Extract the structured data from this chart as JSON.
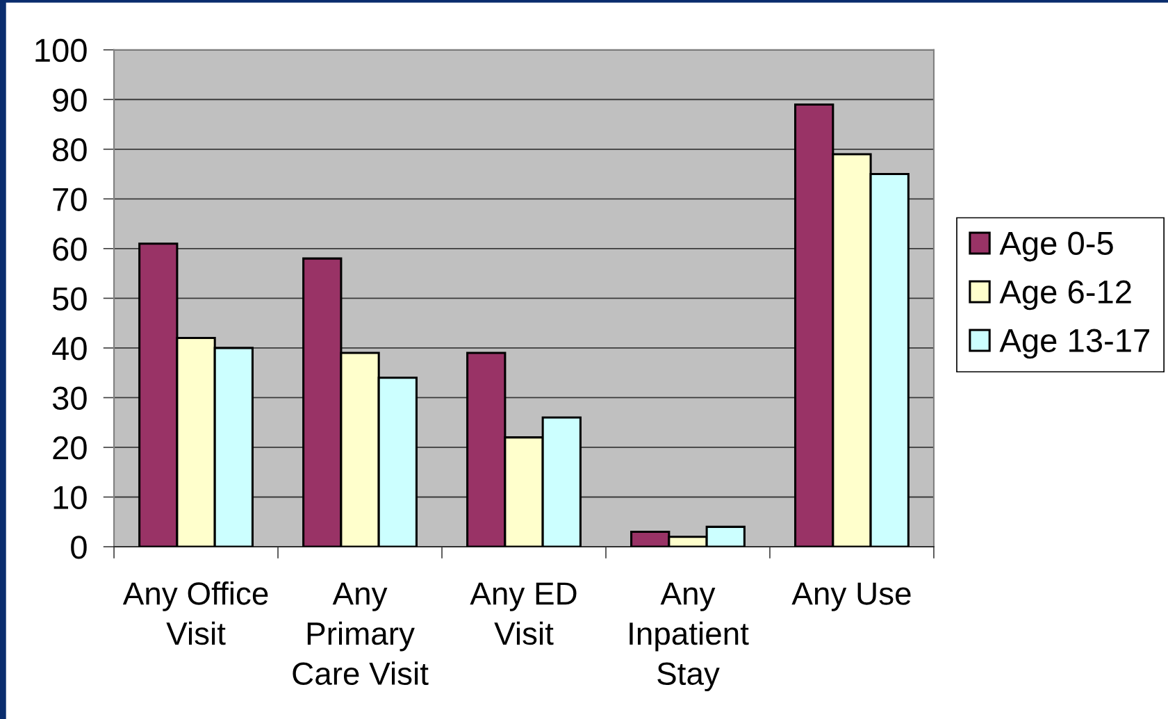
{
  "chart_data": {
    "type": "bar",
    "categories": [
      "Any Office\nVisit",
      "Any\nPrimary\nCare Visit",
      "Any ED\nVisit",
      "Any\nInpatient\nStay",
      "Any Use"
    ],
    "series": [
      {
        "name": "Age 0-5",
        "color": "#993366",
        "values": [
          61,
          58,
          39,
          3,
          89
        ]
      },
      {
        "name": "Age 6-12",
        "color": "#ffffcc",
        "values": [
          42,
          39,
          22,
          2,
          79
        ]
      },
      {
        "name": "Age 13-17",
        "color": "#ccffff",
        "values": [
          40,
          34,
          26,
          4,
          75
        ]
      }
    ],
    "ylim": [
      0,
      100
    ],
    "yticks": [
      0,
      10,
      20,
      30,
      40,
      50,
      60,
      70,
      80,
      90,
      100
    ],
    "grid": "y",
    "legend": "right"
  }
}
